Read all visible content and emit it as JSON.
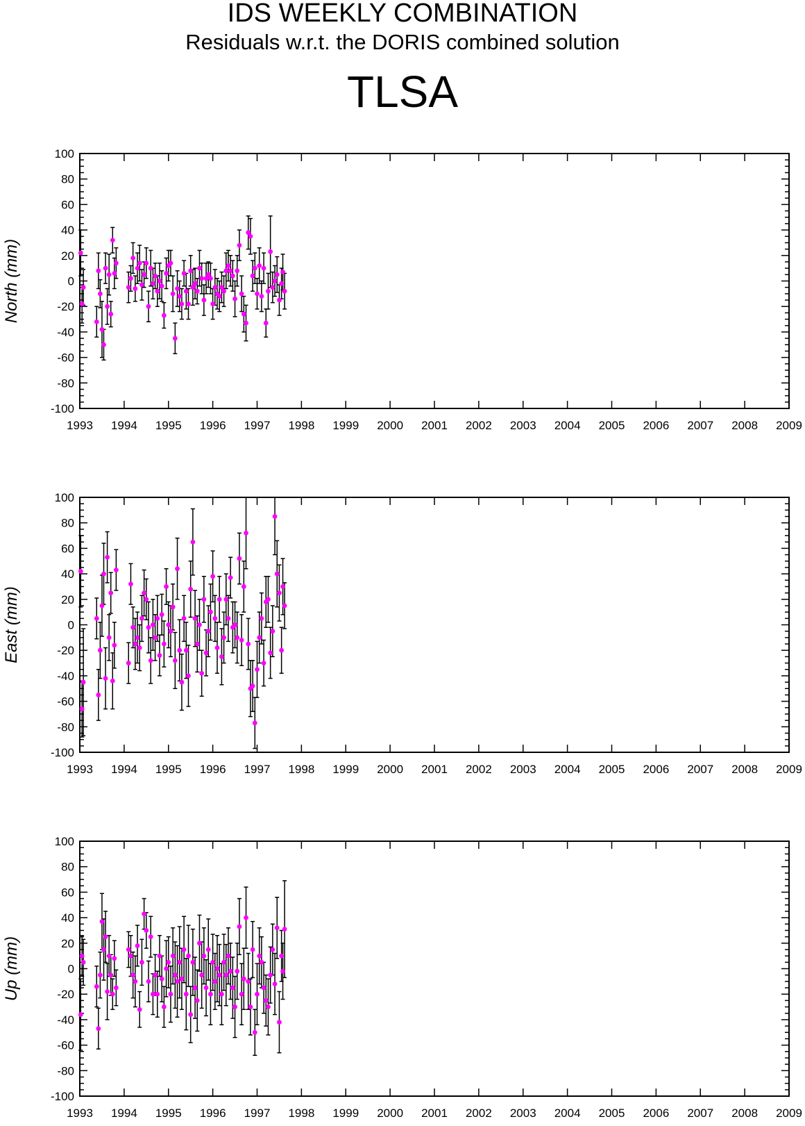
{
  "header": {
    "title": "IDS WEEKLY COMBINATION",
    "subtitle": "Residuals w.r.t. the DORIS combined solution",
    "station": "TLSA"
  },
  "colors": {
    "marker": "#ff00ff",
    "errorbar": "#000000",
    "axis": "#000000"
  },
  "chart_data": [
    {
      "type": "scatter",
      "ylabel": "North (mm)",
      "xlim": [
        1993,
        2009
      ],
      "ylim": [
        -100,
        100
      ],
      "x_ticks": [
        "1993",
        "1994",
        "1995",
        "1996",
        "1997",
        "1998",
        "1999",
        "2000",
        "2001",
        "2002",
        "2003",
        "2004",
        "2005",
        "2006",
        "2007",
        "2008",
        "2009"
      ],
      "y_ticks": [
        "-100",
        "-80",
        "-60",
        "-40",
        "-20",
        "0",
        "20",
        "40",
        "60",
        "80",
        "100"
      ],
      "grid": false,
      "series": [
        {
          "x": [
            1993.02,
            1993.05,
            1993.08,
            1993.38,
            1993.42,
            1993.46,
            1993.5,
            1993.54,
            1993.58,
            1993.62,
            1993.66,
            1993.7,
            1993.74,
            1993.78,
            1993.82,
            1994.1,
            1994.15,
            1994.2,
            1994.25,
            1994.3,
            1994.35,
            1994.4,
            1994.45,
            1994.5,
            1994.55,
            1994.6,
            1994.65,
            1994.7,
            1994.75,
            1994.8,
            1994.85,
            1994.9,
            1994.95,
            1995.0,
            1995.05,
            1995.1,
            1995.15,
            1995.2,
            1995.25,
            1995.3,
            1995.35,
            1995.4,
            1995.45,
            1995.5,
            1995.55,
            1995.6,
            1995.65,
            1995.7,
            1995.75,
            1995.8,
            1995.85,
            1995.9,
            1995.95,
            1996.0,
            1996.05,
            1996.1,
            1996.15,
            1996.2,
            1996.25,
            1996.3,
            1996.35,
            1996.4,
            1996.45,
            1996.5,
            1996.55,
            1996.6,
            1996.65,
            1996.7,
            1996.75,
            1996.8,
            1996.85,
            1996.9,
            1996.95,
            1997.0,
            1997.05,
            1997.1,
            1997.15,
            1997.2,
            1997.25,
            1997.3,
            1997.35,
            1997.4,
            1997.45,
            1997.5,
            1997.55,
            1997.58,
            1997.62
          ],
          "y": [
            22,
            -18,
            -5,
            -32,
            8,
            -10,
            -38,
            -50,
            10,
            -20,
            5,
            -26,
            32,
            6,
            14,
            -5,
            2,
            18,
            -6,
            10,
            14,
            -3,
            5,
            14,
            -20,
            10,
            -2,
            4,
            -8,
            0,
            -4,
            -27,
            6,
            12,
            14,
            -10,
            -45,
            -6,
            -12,
            -18,
            6,
            -8,
            -18,
            8,
            -5,
            -2,
            -8,
            10,
            2,
            -15,
            2,
            5,
            2,
            -18,
            -5,
            -10,
            -12,
            -5,
            -8,
            8,
            12,
            8,
            4,
            -14,
            8,
            28,
            -10,
            -26,
            -33,
            38,
            35,
            4,
            10,
            -10,
            12,
            -12,
            10,
            -33,
            -8,
            23,
            -5,
            0,
            5,
            -15,
            -2,
            7,
            -8
          ],
          "err": [
            18,
            15,
            14,
            12,
            14,
            11,
            22,
            12,
            12,
            14,
            16,
            10,
            10,
            12,
            12,
            12,
            10,
            12,
            10,
            12,
            14,
            12,
            10,
            12,
            12,
            14,
            12,
            10,
            12,
            14,
            12,
            10,
            12,
            12,
            10,
            14,
            12,
            14,
            12,
            12,
            10,
            14,
            12,
            12,
            14,
            12,
            10,
            14,
            12,
            12,
            12,
            10,
            12,
            12,
            14,
            12,
            12,
            12,
            12,
            14,
            12,
            12,
            12,
            14,
            12,
            12,
            14,
            14,
            14,
            13,
            14,
            12,
            12,
            12,
            14,
            12,
            12,
            11,
            14,
            28,
            12,
            12,
            14,
            12,
            12,
            14,
            14
          ]
        }
      ]
    },
    {
      "type": "scatter",
      "ylabel": "East (mm)",
      "xlim": [
        1993,
        2009
      ],
      "ylim": [
        -100,
        100
      ],
      "x_ticks": [
        "1993",
        "1994",
        "1995",
        "1996",
        "1997",
        "1998",
        "1999",
        "2000",
        "2001",
        "2002",
        "2003",
        "2004",
        "2005",
        "2006",
        "2007",
        "2008",
        "2009"
      ],
      "y_ticks": [
        "-100",
        "-80",
        "-60",
        "-40",
        "-20",
        "0",
        "20",
        "40",
        "60",
        "80",
        "100"
      ],
      "grid": false,
      "series": [
        {
          "x": [
            1993.02,
            1993.05,
            1993.08,
            1993.38,
            1993.42,
            1993.46,
            1993.5,
            1993.54,
            1993.58,
            1993.62,
            1993.66,
            1993.7,
            1993.74,
            1993.78,
            1993.82,
            1994.1,
            1994.15,
            1994.2,
            1994.25,
            1994.3,
            1994.35,
            1994.4,
            1994.45,
            1994.5,
            1994.55,
            1994.6,
            1994.65,
            1994.7,
            1994.75,
            1994.8,
            1994.85,
            1994.9,
            1994.95,
            1995.0,
            1995.05,
            1995.1,
            1995.15,
            1995.2,
            1995.25,
            1995.3,
            1995.35,
            1995.4,
            1995.45,
            1995.5,
            1995.55,
            1995.6,
            1995.65,
            1995.7,
            1995.75,
            1995.8,
            1995.85,
            1995.9,
            1995.95,
            1996.0,
            1996.05,
            1996.1,
            1996.15,
            1996.2,
            1996.25,
            1996.3,
            1996.35,
            1996.4,
            1996.45,
            1996.5,
            1996.55,
            1996.6,
            1996.65,
            1996.7,
            1996.75,
            1996.8,
            1996.85,
            1996.9,
            1996.95,
            1997.0,
            1997.05,
            1997.1,
            1997.15,
            1997.2,
            1997.25,
            1997.3,
            1997.35,
            1997.4,
            1997.45,
            1997.5,
            1997.55,
            1997.58,
            1997.62
          ],
          "y": [
            42,
            -66,
            -45,
            5,
            -55,
            -20,
            15,
            40,
            -42,
            53,
            -10,
            25,
            -44,
            -16,
            43,
            -30,
            32,
            -2,
            -15,
            -10,
            -18,
            5,
            25,
            20,
            -2,
            -28,
            0,
            -10,
            5,
            -24,
            8,
            -15,
            30,
            0,
            -5,
            14,
            -28,
            44,
            -20,
            -45,
            5,
            -20,
            -40,
            28,
            65,
            5,
            -15,
            0,
            -38,
            20,
            -22,
            -5,
            10,
            38,
            5,
            -18,
            20,
            -25,
            -10,
            20,
            5,
            37,
            -2,
            0,
            -10,
            52,
            -12,
            30,
            72,
            -15,
            -50,
            -48,
            -77,
            -35,
            -10,
            5,
            -30,
            18,
            20,
            -22,
            -5,
            85,
            40,
            25,
            -20,
            30,
            15
          ],
          "err": [
            28,
            22,
            42,
            16,
            20,
            22,
            24,
            24,
            24,
            20,
            18,
            16,
            22,
            18,
            16,
            16,
            16,
            16,
            20,
            20,
            18,
            18,
            18,
            16,
            20,
            18,
            20,
            18,
            18,
            16,
            16,
            18,
            14,
            18,
            20,
            18,
            22,
            24,
            24,
            22,
            18,
            22,
            24,
            22,
            26,
            22,
            22,
            20,
            18,
            18,
            18,
            20,
            22,
            20,
            18,
            20,
            18,
            22,
            20,
            20,
            18,
            16,
            20,
            18,
            20,
            20,
            20,
            20,
            28,
            20,
            22,
            20,
            20,
            22,
            20,
            20,
            18,
            20,
            18,
            20,
            20,
            30,
            26,
            22,
            18,
            22,
            18
          ]
        }
      ]
    },
    {
      "type": "scatter",
      "ylabel": "Up (mm)",
      "xlim": [
        1993,
        2009
      ],
      "ylim": [
        -100,
        100
      ],
      "x_ticks": [
        "1993",
        "1994",
        "1995",
        "1996",
        "1997",
        "1998",
        "1999",
        "2000",
        "2001",
        "2002",
        "2003",
        "2004",
        "2005",
        "2006",
        "2007",
        "2008",
        "2009"
      ],
      "y_ticks": [
        "-100",
        "-80",
        "-60",
        "-40",
        "-20",
        "0",
        "20",
        "40",
        "60",
        "80",
        "100"
      ],
      "grid": false,
      "series": [
        {
          "x": [
            1993.02,
            1993.05,
            1993.08,
            1993.38,
            1993.42,
            1993.46,
            1993.5,
            1993.54,
            1993.58,
            1993.62,
            1993.66,
            1993.7,
            1993.74,
            1993.78,
            1993.82,
            1994.1,
            1994.15,
            1994.2,
            1994.25,
            1994.3,
            1994.35,
            1994.4,
            1994.45,
            1994.5,
            1994.55,
            1994.6,
            1994.65,
            1994.7,
            1994.75,
            1994.8,
            1994.85,
            1994.9,
            1994.95,
            1995.0,
            1995.05,
            1995.1,
            1995.15,
            1995.2,
            1995.25,
            1995.3,
            1995.35,
            1995.4,
            1995.45,
            1995.5,
            1995.55,
            1995.6,
            1995.65,
            1995.7,
            1995.75,
            1995.8,
            1995.85,
            1995.9,
            1995.95,
            1996.0,
            1996.05,
            1996.1,
            1996.15,
            1996.2,
            1996.25,
            1996.3,
            1996.35,
            1996.4,
            1996.45,
            1996.5,
            1996.55,
            1996.6,
            1996.65,
            1996.7,
            1996.75,
            1996.8,
            1996.85,
            1996.9,
            1996.95,
            1997.0,
            1997.05,
            1997.1,
            1997.15,
            1997.2,
            1997.25,
            1997.3,
            1997.35,
            1997.4,
            1997.45,
            1997.5,
            1997.55,
            1997.58,
            1997.62
          ],
          "y": [
            -36,
            10,
            5,
            -14,
            -47,
            -5,
            37,
            15,
            25,
            -18,
            10,
            -5,
            -20,
            8,
            -15,
            15,
            10,
            -5,
            -10,
            18,
            -32,
            5,
            43,
            30,
            -10,
            25,
            -20,
            -5,
            -20,
            10,
            -8,
            -30,
            0,
            5,
            -20,
            10,
            -5,
            -10,
            5,
            -8,
            15,
            -20,
            10,
            -36,
            5,
            -15,
            -25,
            20,
            -5,
            10,
            -15,
            15,
            -20,
            5,
            -10,
            0,
            -5,
            -20,
            5,
            -5,
            10,
            -2,
            -15,
            -30,
            -2,
            33,
            -20,
            -8,
            40,
            -10,
            -30,
            15,
            -50,
            -20,
            10,
            5,
            -15,
            -25,
            -30,
            -5,
            15,
            -12,
            32,
            -42,
            10,
            -2,
            31
          ],
          "err": [
            28,
            16,
            18,
            16,
            16,
            18,
            22,
            24,
            20,
            22,
            16,
            16,
            12,
            14,
            14,
            14,
            16,
            18,
            20,
            16,
            14,
            18,
            12,
            14,
            16,
            16,
            16,
            16,
            18,
            16,
            18,
            16,
            22,
            20,
            22,
            22,
            26,
            28,
            28,
            24,
            26,
            28,
            24,
            22,
            26,
            24,
            24,
            22,
            26,
            22,
            22,
            24,
            24,
            22,
            22,
            26,
            24,
            24,
            22,
            24,
            22,
            22,
            24,
            24,
            22,
            22,
            24,
            24,
            24,
            22,
            22,
            22,
            18,
            24,
            22,
            20,
            20,
            20,
            22,
            22,
            20,
            24,
            24,
            24,
            20,
            22,
            38
          ]
        }
      ]
    }
  ]
}
